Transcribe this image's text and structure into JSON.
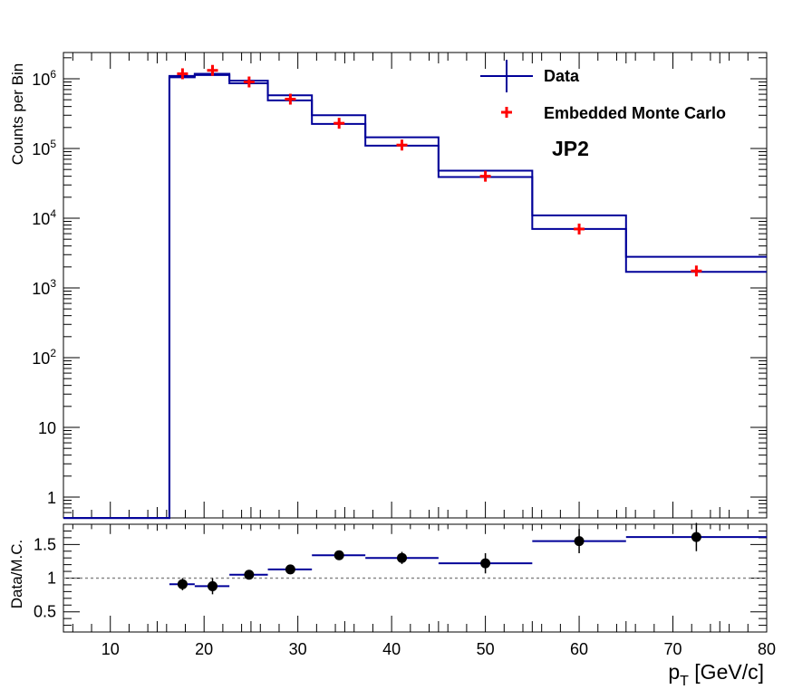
{
  "chart_data": [
    {
      "type": "line",
      "panel": "top",
      "ylabel": "Counts per Bin",
      "xlim": [
        5,
        80
      ],
      "ylim": [
        0.5,
        2000000
      ],
      "log_y": true,
      "y_tick_labels": [
        {
          "value": 1,
          "label": "1",
          "exp": ""
        },
        {
          "value": 10,
          "label": "10",
          "exp": ""
        },
        {
          "value": 100,
          "label": "10",
          "exp": "2"
        },
        {
          "value": 1000,
          "label": "10",
          "exp": "3"
        },
        {
          "value": 10000,
          "label": "10",
          "exp": "4"
        },
        {
          "value": 100000,
          "label": "10",
          "exp": "5"
        },
        {
          "value": 1000000,
          "label": "10",
          "exp": "6"
        }
      ],
      "annotation": "JP2",
      "legend_position": "top-right",
      "series": [
        {
          "name": "Data",
          "style": "histogram",
          "color": "#000099",
          "bin_edges": [
            5,
            16.3,
            19.0,
            22.7,
            26.8,
            31.5,
            37.2,
            45.0,
            55.0,
            65.0,
            80.0
          ],
          "values": [
            0.5,
            1100000,
            1180000,
            940000,
            580000,
            300000,
            145000,
            48000,
            11000,
            2800
          ]
        },
        {
          "name": "Embedded Monte Carlo",
          "style": "markers",
          "color": "#ff0000",
          "x": [
            17.7,
            20.9,
            24.8,
            29.2,
            34.4,
            41.1,
            50.0,
            60.0,
            72.5
          ],
          "y": [
            1180000,
            1320000,
            900000,
            510000,
            230000,
            112000,
            40000,
            7000,
            1750
          ]
        },
        {
          "name": "",
          "style": "histogram",
          "color": "#000099",
          "bin_edges": [
            5,
            16.3,
            19.0,
            22.7,
            26.8,
            31.5,
            37.2,
            45.0,
            55.0,
            65.0,
            80.0
          ],
          "values": [
            0.5,
            1050000,
            1130000,
            860000,
            490000,
            225000,
            110000,
            39000,
            7000,
            1700
          ]
        }
      ]
    },
    {
      "type": "scatter",
      "panel": "bottom",
      "ylabel": "Data/M.C.",
      "xlabel": "p",
      "xlabel_sub": "T",
      "xlabel_units": " [GeV/c]",
      "xlim": [
        5,
        80
      ],
      "ylim": [
        0.2,
        1.8
      ],
      "x_ticks": [
        10,
        20,
        30,
        40,
        50,
        60,
        70,
        80
      ],
      "y_ticks": [
        0.5,
        1,
        1.5
      ],
      "y_tick_labels": [
        "0.5",
        "1",
        "1.5"
      ],
      "reference_line": 1,
      "series": [
        {
          "name": "",
          "style": "markers_with_bins",
          "marker_color": "#000000",
          "bin_color": "#000099",
          "x": [
            17.7,
            20.9,
            24.8,
            29.2,
            34.4,
            41.1,
            50.0,
            60.0,
            72.5
          ],
          "y": [
            0.91,
            0.88,
            1.05,
            1.13,
            1.34,
            1.3,
            1.22,
            1.55,
            1.61
          ],
          "x_low": [
            16.3,
            19.0,
            22.7,
            26.8,
            31.5,
            37.2,
            45.0,
            55.0,
            65.0
          ],
          "x_high": [
            19.0,
            22.7,
            26.8,
            31.5,
            37.2,
            45.0,
            55.0,
            65.0,
            80.0
          ],
          "y_err": [
            0.09,
            0.12,
            0.07,
            0.07,
            0.07,
            0.09,
            0.15,
            0.18,
            0.21
          ]
        }
      ]
    }
  ]
}
